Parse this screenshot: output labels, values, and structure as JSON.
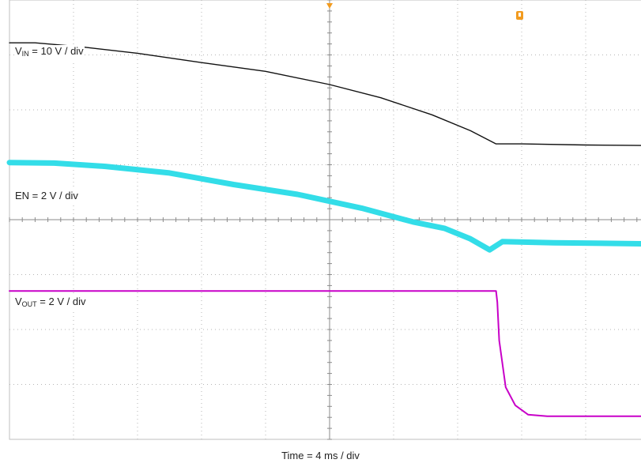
{
  "chart_data": {
    "type": "line",
    "xlabel": "Time = 4 ms / div",
    "grid": true,
    "divisions": {
      "x": 10,
      "y": 8
    },
    "xlim": [
      -5,
      5
    ],
    "ylim": [
      -4,
      4
    ],
    "series": [
      {
        "name": "VIN",
        "label": {
          "prefix": "V",
          "sub": "IN",
          "suffix": " = 10 V / div"
        },
        "color": "#111111",
        "trace_width": 1.4,
        "x": [
          -5,
          -4.6,
          -3.9,
          -3,
          -2,
          -1,
          0,
          0.8,
          1.6,
          2.2,
          2.6,
          3,
          4,
          5
        ],
        "y": [
          3.22,
          3.22,
          3.15,
          3.03,
          2.86,
          2.7,
          2.46,
          2.22,
          1.91,
          1.62,
          1.38,
          1.38,
          1.36,
          1.35
        ]
      },
      {
        "name": "EN",
        "label": {
          "prefix": "EN",
          "sub": "",
          "suffix": " = 2 V / div"
        },
        "color": "#33dde8",
        "trace_width": 7,
        "x": [
          -5,
          -4.3,
          -3.5,
          -2.5,
          -1.5,
          -0.5,
          0.5,
          1.3,
          1.8,
          2.2,
          2.5,
          2.7,
          3.5,
          5
        ],
        "y": [
          1.04,
          1.03,
          0.97,
          0.85,
          0.64,
          0.46,
          0.21,
          -0.04,
          -0.16,
          -0.35,
          -0.55,
          -0.4,
          -0.42,
          -0.44
        ]
      },
      {
        "name": "VOUT",
        "label": {
          "prefix": "V",
          "sub": "OUT",
          "suffix": " = 2 V / div"
        },
        "color": "#c800c8",
        "trace_width": 2,
        "x": [
          -5,
          2.6,
          2.62,
          2.65,
          2.75,
          2.9,
          3.1,
          3.4,
          4,
          5
        ],
        "y": [
          -1.3,
          -1.3,
          -1.5,
          -2.2,
          -3.05,
          -3.38,
          -3.55,
          -3.58,
          -3.58,
          -3.58
        ]
      }
    ]
  }
}
